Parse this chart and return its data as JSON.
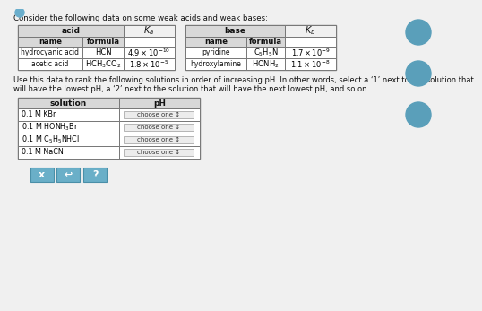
{
  "title": "Consider the following data on some weak acids and weak bases:",
  "bg_color": "#f0f0f0",
  "white": "#ffffff",
  "header_bg": "#d8d8d8",
  "border_color": "#888888",
  "text_color": "#111111",
  "button_color": "#6aafc8",
  "icon_color": "#5a9fba",
  "acid_header": "acid",
  "base_header": "base",
  "Ka_label": "$K_a$",
  "Kb_label": "$K_b$",
  "acid_cols": [
    "name",
    "formula"
  ],
  "base_cols": [
    "name",
    "formula"
  ],
  "acid_rows": [
    [
      "hydrocyanic acid",
      "HCN",
      "$4.9\\times10^{-10}$"
    ],
    [
      "acetic acid",
      "$\\mathrm{HCH_3CO_2}$",
      "$1.8\\times10^{-5}$"
    ]
  ],
  "base_rows": [
    [
      "pyridine",
      "$\\mathrm{C_5H_5N}$",
      "$1.7\\times10^{-9}$"
    ],
    [
      "hydroxylamine",
      "$\\mathrm{HONH_2}$",
      "$1.1\\times10^{-8}$"
    ]
  ],
  "instruction1": "Use this data to rank the following solutions in order of increasing pH. In other words, select a ‘1’ next to the solution that",
  "instruction2": "will have the lowest pH, a ‘2’ next to the solution that will have the next lowest pH, and so on.",
  "sol_header": [
    "solution",
    "pH"
  ],
  "sol_rows": [
    "0.1 M KBr",
    "0.1 M HONH$_3$Br",
    "0.1 M C$_5$H$_5$NHCl",
    "0.1 M NaCN"
  ],
  "choose_label": "choose one ↕",
  "buttons": [
    "x",
    "↩",
    "?"
  ]
}
